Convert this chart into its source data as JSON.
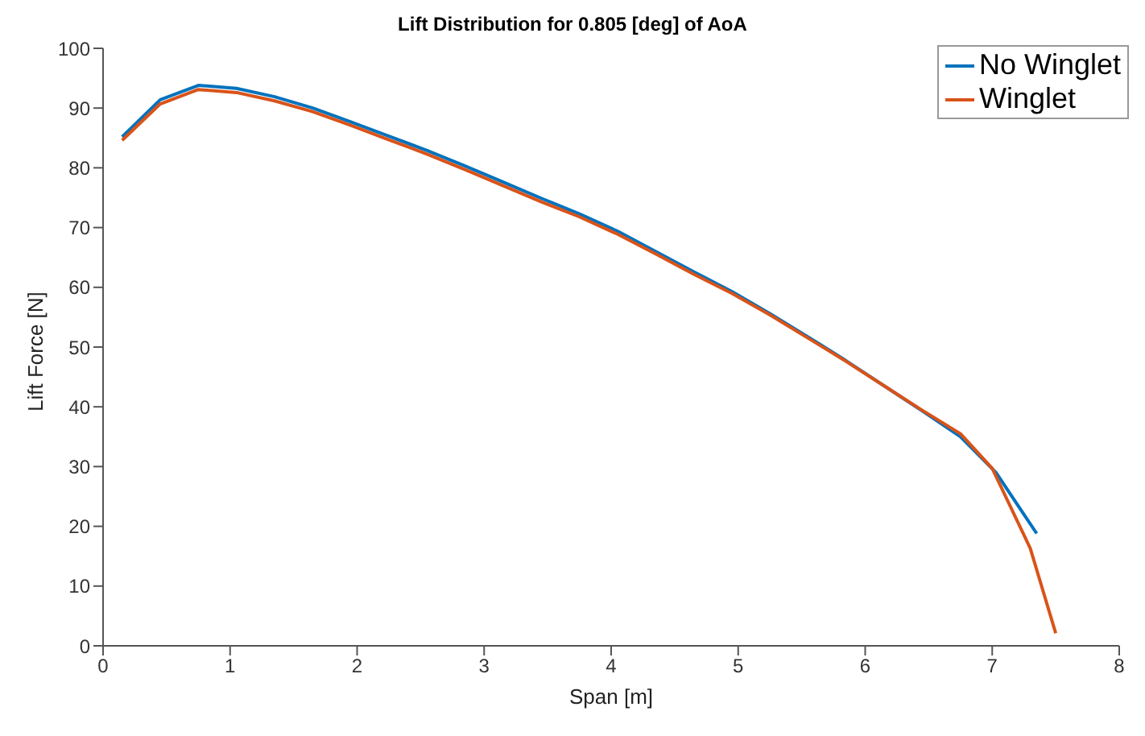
{
  "chart_data": {
    "type": "line",
    "title": "Lift Distribution for 0.805 [deg] of AoA",
    "xlabel": "Span [m]",
    "ylabel": "Lift Force [N]",
    "xlim": [
      0,
      8
    ],
    "xticks": [
      0,
      1,
      2,
      3,
      4,
      5,
      6,
      7,
      8
    ],
    "ylim": [
      0,
      100
    ],
    "yticks": [
      0,
      10,
      20,
      30,
      40,
      50,
      60,
      70,
      80,
      90,
      100
    ],
    "grid": false,
    "legend": "top right",
    "marker": "none",
    "line_style": "solid",
    "series": [
      {
        "name": "No Winglet",
        "color": "#0072bd",
        "x": [
          0.15,
          0.45,
          0.75,
          1.05,
          1.35,
          1.65,
          1.95,
          2.25,
          2.55,
          2.85,
          3.15,
          3.45,
          3.75,
          4.05,
          4.35,
          4.65,
          4.95,
          5.25,
          5.55,
          5.85,
          6.15,
          6.45,
          6.75,
          7.03,
          7.35
        ],
        "values": [
          85.2,
          91.4,
          93.8,
          93.3,
          91.9,
          90.0,
          87.7,
          85.3,
          82.9,
          80.3,
          77.6,
          74.9,
          72.3,
          69.4,
          66.0,
          62.6,
          59.3,
          55.6,
          51.7,
          47.7,
          43.5,
          39.3,
          35.0,
          29.0,
          18.8
        ]
      },
      {
        "name": "Winglet",
        "color": "#d95319",
        "x": [
          0.15,
          0.45,
          0.75,
          1.05,
          1.35,
          1.65,
          1.95,
          2.25,
          2.55,
          2.85,
          3.15,
          3.45,
          3.75,
          4.05,
          4.35,
          4.65,
          4.95,
          5.25,
          5.55,
          5.85,
          6.15,
          6.45,
          6.75,
          7.0,
          7.3,
          7.5
        ],
        "values": [
          84.6,
          90.7,
          93.1,
          92.6,
          91.2,
          89.4,
          87.1,
          84.7,
          82.3,
          79.7,
          77.0,
          74.3,
          71.8,
          68.9,
          65.6,
          62.2,
          59.0,
          55.4,
          51.5,
          47.6,
          43.5,
          39.4,
          35.5,
          29.7,
          16.3,
          2.1
        ]
      }
    ]
  }
}
